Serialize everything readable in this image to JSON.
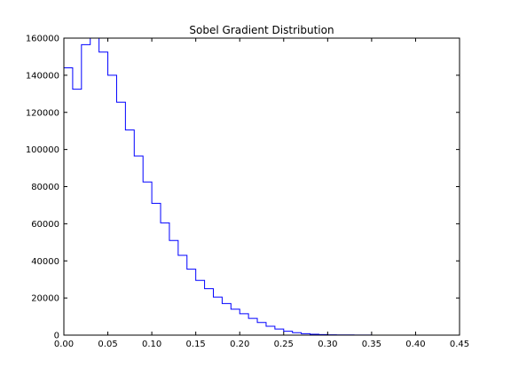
{
  "chart_data": {
    "type": "line",
    "step": true,
    "title": "Sobel Gradient Distribution",
    "xlabel": "",
    "ylabel": "",
    "xlim": [
      0.0,
      0.45
    ],
    "ylim": [
      0,
      160000
    ],
    "grid": false,
    "line_color": "#0000ff",
    "x_ticks": [
      0.0,
      0.05,
      0.1,
      0.15,
      0.2,
      0.25,
      0.3,
      0.35,
      0.4,
      0.45
    ],
    "x_tick_labels": [
      "0.00",
      "0.05",
      "0.10",
      "0.15",
      "0.20",
      "0.25",
      "0.30",
      "0.35",
      "0.40",
      "0.45"
    ],
    "y_ticks": [
      0,
      20000,
      40000,
      60000,
      80000,
      100000,
      120000,
      140000,
      160000
    ],
    "y_tick_labels": [
      "0",
      "20000",
      "40000",
      "60000",
      "80000",
      "100000",
      "120000",
      "140000",
      "160000"
    ],
    "bin_width": 0.01,
    "bin_starts": [
      0.0,
      0.01,
      0.02,
      0.03,
      0.04,
      0.05,
      0.06,
      0.07,
      0.08,
      0.09,
      0.1,
      0.11,
      0.12,
      0.13,
      0.14,
      0.15,
      0.16,
      0.17,
      0.18,
      0.19,
      0.2,
      0.21,
      0.22,
      0.23,
      0.24,
      0.25,
      0.26,
      0.27,
      0.28,
      0.29,
      0.3,
      0.31,
      0.32,
      0.33,
      0.34,
      0.35,
      0.36,
      0.37,
      0.38,
      0.39
    ],
    "values": [
      144000,
      132500,
      156500,
      160000,
      152500,
      140000,
      125500,
      110500,
      96500,
      82500,
      71000,
      60500,
      51000,
      43000,
      35500,
      29500,
      25000,
      20500,
      17000,
      14000,
      11500,
      9000,
      6800,
      4800,
      3300,
      2100,
      1300,
      800,
      500,
      300,
      200,
      130,
      90,
      60,
      40,
      25,
      15,
      10,
      6,
      3
    ]
  }
}
